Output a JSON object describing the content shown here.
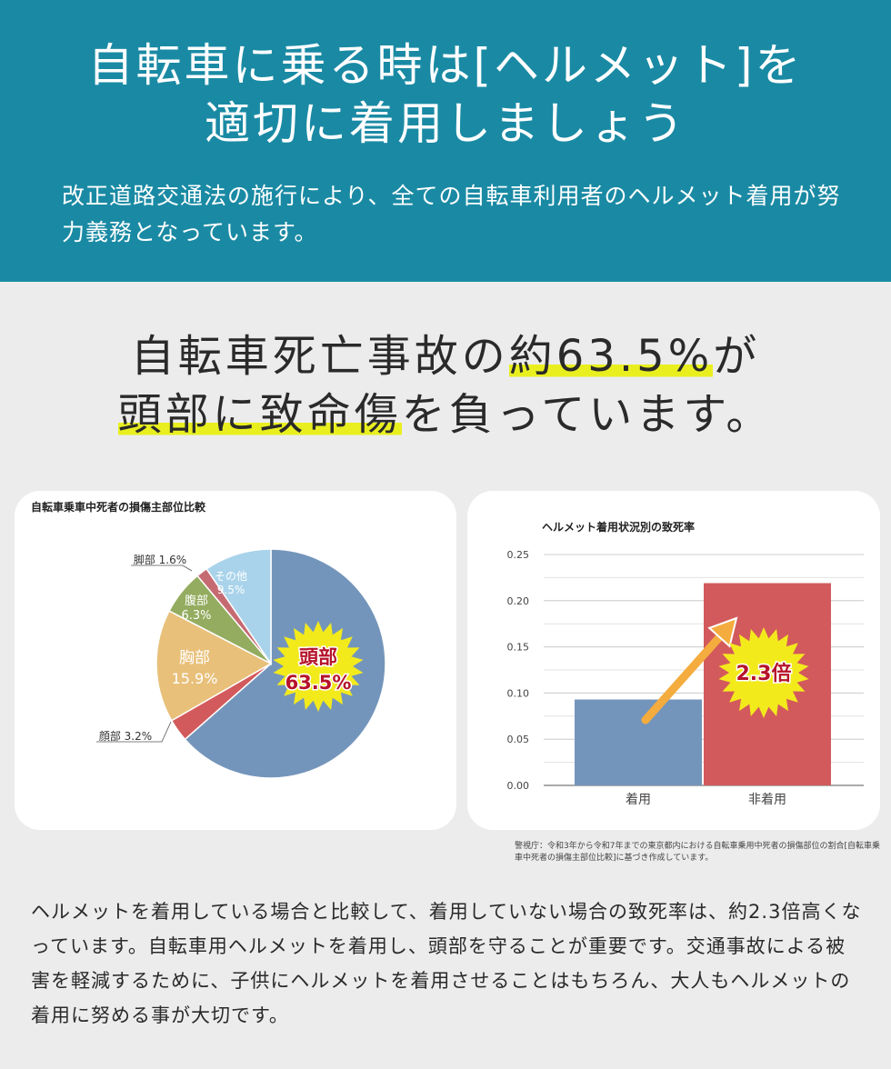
{
  "header": {
    "title_line1": "自転車に乗る時は[ヘルメット]を",
    "title_line2": "適切に着用しましょう",
    "subtitle": "改正道路交通法の施行により、全ての自転車利用者のヘルメット着用が努力義務となっています。"
  },
  "headline": {
    "part1": "自転車死亡事故の",
    "highlight1": "約63.5%",
    "part2": "が",
    "highlight2": "頭部に致命傷",
    "part3": "を負っています。"
  },
  "chart_data": [
    {
      "type": "pie",
      "title": "自転車乗車中死者の損傷主部位比較",
      "slices": [
        {
          "label": "頭部",
          "value_label": "63.5%",
          "value": 63.5,
          "color": "#7495bb"
        },
        {
          "label": "顔部",
          "value_label": "3.2%",
          "value": 3.2,
          "color": "#d35a5c"
        },
        {
          "label": "胸部",
          "value_label": "15.9%",
          "value": 15.9,
          "color": "#e8c07a"
        },
        {
          "label": "腹部",
          "value_label": "6.3%",
          "value": 6.3,
          "color": "#94ac5f"
        },
        {
          "label": "脚部",
          "value_label": "1.6%",
          "value": 1.6,
          "color": "#c66a72"
        },
        {
          "label": "その他",
          "value_label": "9.5%",
          "value": 9.5,
          "color": "#a9d3ea"
        }
      ]
    },
    {
      "type": "bar",
      "title": "ヘルメット着用状況別の致死率",
      "categories": [
        "着用",
        "非着用"
      ],
      "values": [
        0.093,
        0.219
      ],
      "colors": [
        "#7495bb",
        "#d35a5c"
      ],
      "ylim": [
        0,
        0.25
      ],
      "yticks": [
        "0.00",
        "0.05",
        "0.10",
        "0.15",
        "0.20",
        "0.25"
      ],
      "grid": true,
      "annotation": "2.3倍"
    }
  ],
  "source": "警視庁：令和3年から令和7年までの東京都内における自転車乗用中死者の損傷部位の割合[自転車乗車中死者の損傷主部位比較]に基づき作成しています。",
  "body": "ヘルメットを着用している場合と比較して、着用していない場合の致死率は、約2.3倍高くなっています。自転車用ヘルメットを着用し、頭部を守ることが重要です。交通事故による被害を軽減するために、子供にヘルメットを着用させることはもちろん、大人もヘルメットの着用に努める事が大切です。"
}
